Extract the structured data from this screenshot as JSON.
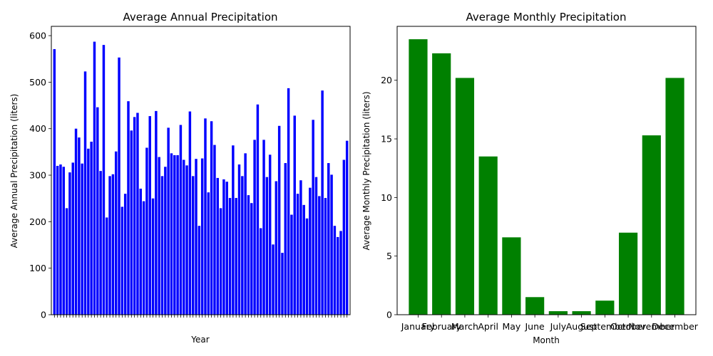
{
  "chart_data": [
    {
      "type": "bar",
      "title": "Average Annual Precipitation",
      "xlabel": "Year",
      "ylabel": "Average Annual Precipitation (liters)",
      "ylim": [
        0,
        620
      ],
      "yticks": [
        0,
        100,
        200,
        300,
        400,
        500,
        600
      ],
      "bar_color": "#0000ff",
      "grid": false,
      "legend": "none",
      "tick_label_note": "x tick labels are four-digit years drawn overlapping and illegible; the rendered text cannot be read",
      "values": [
        571,
        320,
        323,
        318,
        229,
        306,
        327,
        400,
        381,
        325,
        523,
        357,
        372,
        587,
        446,
        309,
        580,
        209,
        298,
        302,
        351,
        553,
        232,
        260,
        459,
        396,
        425,
        434,
        271,
        244,
        359,
        427,
        250,
        438,
        339,
        298,
        318,
        402,
        347,
        343,
        343,
        408,
        333,
        321,
        437,
        298,
        335,
        191,
        336,
        422,
        263,
        416,
        365,
        294,
        229,
        291,
        286,
        251,
        364,
        251,
        323,
        298,
        347,
        257,
        240,
        376,
        452,
        186,
        376,
        296,
        344,
        151,
        287,
        406,
        133,
        326,
        487,
        215,
        428,
        260,
        289,
        236,
        207,
        273,
        419,
        296,
        255,
        482,
        251,
        326,
        301,
        191,
        167,
        180,
        333,
        374
      ]
    },
    {
      "type": "bar",
      "title": "Average Monthly Precipitation",
      "xlabel": "Month",
      "ylabel": "Average Monthly Precipitation (liters)",
      "ylim": [
        0,
        24.6
      ],
      "yticks": [
        0,
        5,
        10,
        15,
        20
      ],
      "bar_color": "#008000",
      "grid": false,
      "legend": "none",
      "categories": [
        "January",
        "February",
        "March",
        "April",
        "May",
        "June",
        "July",
        "August",
        "September",
        "October",
        "November",
        "December"
      ],
      "values": [
        23.5,
        22.3,
        20.2,
        13.5,
        6.6,
        1.5,
        0.3,
        0.3,
        1.2,
        7.0,
        15.3,
        20.2
      ]
    }
  ]
}
